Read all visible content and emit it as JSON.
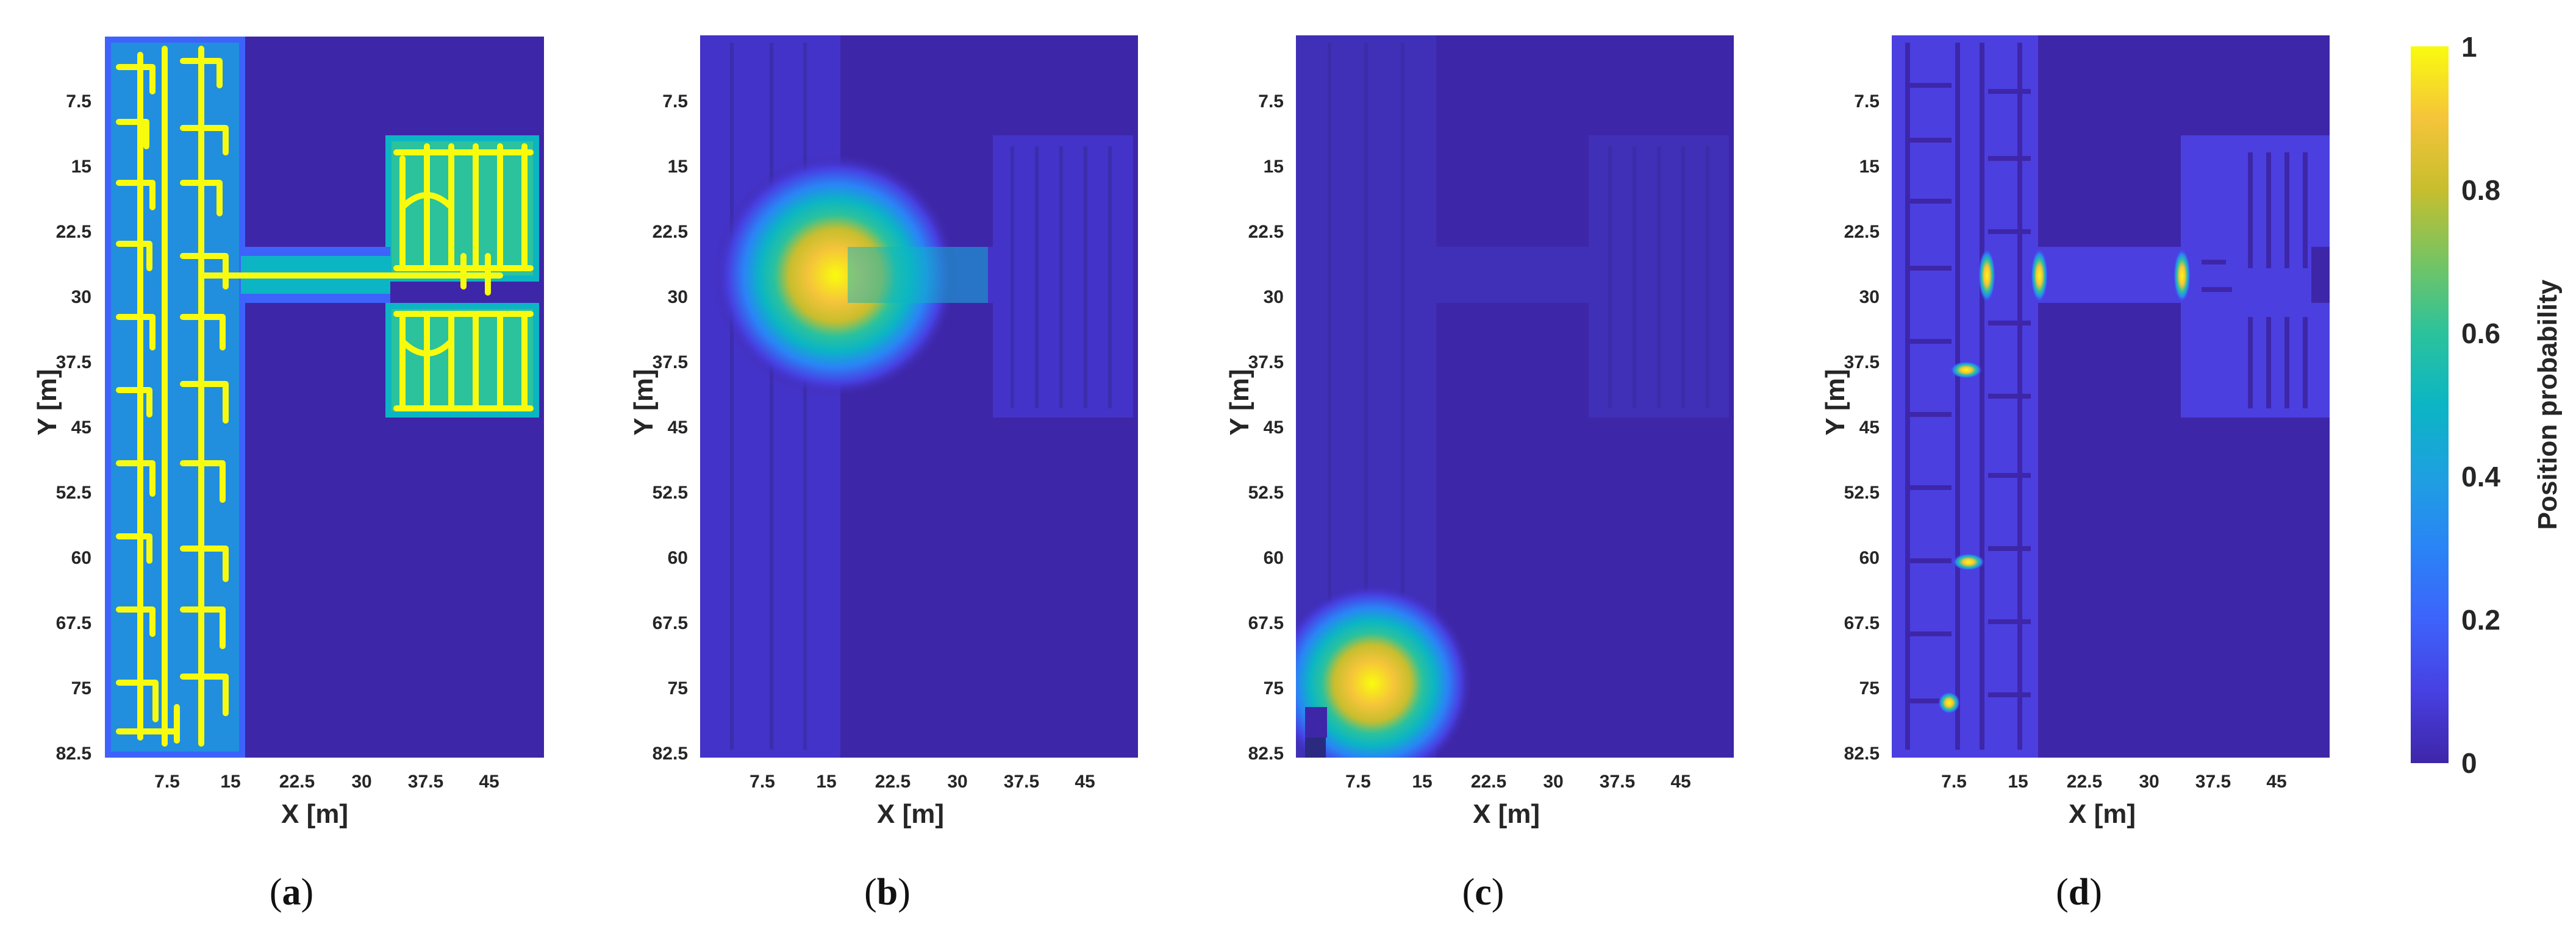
{
  "chart_data": {
    "type": "heatmap",
    "colormap": "parula",
    "colorbar": {
      "label": "Position probability",
      "min": 0,
      "max": 1,
      "tick_labels": [
        "0",
        "0.2",
        "0.4",
        "0.6",
        "0.8",
        "1"
      ]
    },
    "x_axis": {
      "label": "X [m]",
      "range": [
        0,
        52.5
      ],
      "tick_labels": [
        "7.5",
        "15",
        "22.5",
        "30",
        "37.5",
        "45"
      ]
    },
    "y_axis": {
      "label": "Y [m]",
      "range": [
        0,
        83.5
      ],
      "reversed": true,
      "tick_labels": [
        "7.5",
        "15",
        "22.5",
        "30",
        "37.5",
        "45",
        "52.5",
        "60",
        "67.5",
        "75",
        "82.5"
      ]
    },
    "panels": [
      {
        "caption_letter": "a",
        "description": "floor plan corridor network",
        "peaks": []
      },
      {
        "caption_letter": "b",
        "description": "single probability blob",
        "peaks": [
          {
            "x": 14,
            "y": 27.5,
            "radius": 12,
            "value": 1
          }
        ]
      },
      {
        "caption_letter": "c",
        "description": "single probability blob",
        "peaks": [
          {
            "x": 8.5,
            "y": 74.5,
            "radius": 10,
            "value": 1
          }
        ]
      },
      {
        "caption_letter": "d",
        "description": "multiple narrow peaks",
        "peaks": [
          {
            "x": 9.5,
            "y": 27.5,
            "value": 1
          },
          {
            "x": 16.5,
            "y": 27.5,
            "value": 1
          },
          {
            "x": 33.5,
            "y": 27.5,
            "value": 1
          },
          {
            "x": 8.5,
            "y": 38.5,
            "value": 0.95
          },
          {
            "x": 8.5,
            "y": 60.2,
            "value": 0.95
          },
          {
            "x": 7,
            "y": 76.5,
            "value": 0.9
          }
        ]
      }
    ]
  },
  "captions": {
    "a": {
      "open": "(",
      "letter": "a",
      "close": ")"
    },
    "b": {
      "open": "(",
      "letter": "b",
      "close": ")"
    },
    "c": {
      "open": "(",
      "letter": "c",
      "close": ")"
    },
    "d": {
      "open": "(",
      "letter": "d",
      "close": ")"
    }
  },
  "colors": {
    "background_low": "#3e26a8",
    "floor": "#4b3fe0",
    "mid": "#22b7a3",
    "high": "#f9fb0e"
  }
}
